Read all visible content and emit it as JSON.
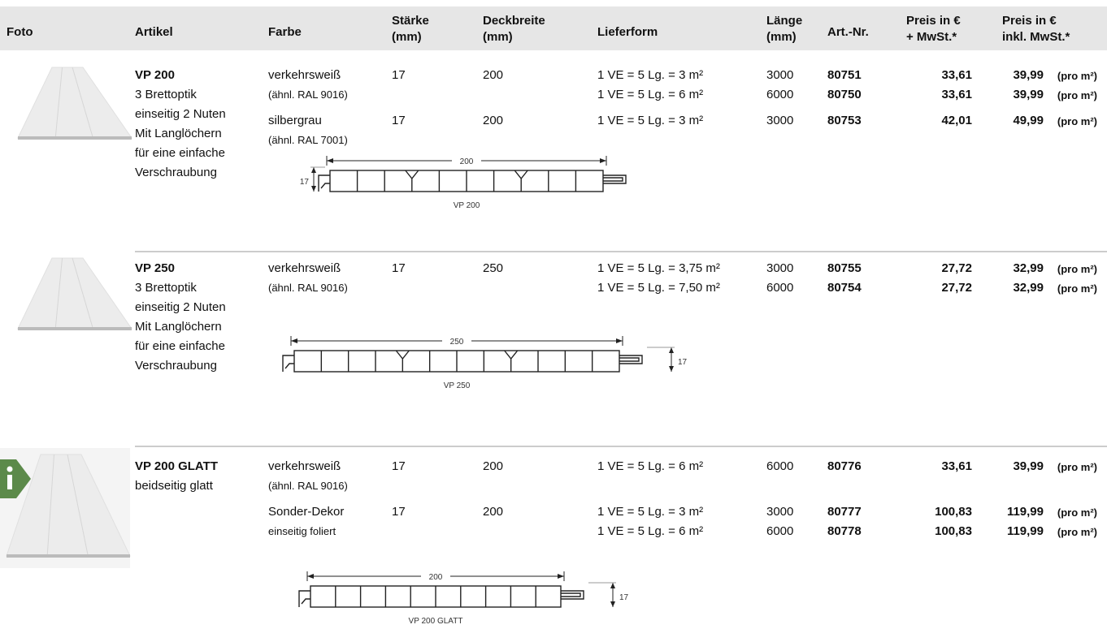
{
  "header": {
    "columns": [
      [
        "Foto"
      ],
      [
        "Artikel"
      ],
      [
        "Farbe"
      ],
      [
        "Stärke",
        "(mm)"
      ],
      [
        "Deckbreite",
        "(mm)"
      ],
      [
        "Lieferform"
      ],
      [
        "Länge",
        "(mm)"
      ],
      [
        "Art.-Nr."
      ],
      [
        "Preis in €",
        "+ MwSt.*"
      ],
      [
        "Preis in €",
        "inkl. MwSt.*"
      ]
    ]
  },
  "price_unit": "(pro m²)",
  "products": [
    {
      "name": "VP 200",
      "description": [
        "3 Brettoptik",
        "einseitig 2 Nuten",
        "Mit Langlöchern",
        "für eine einfache",
        "Verschraubung"
      ],
      "variants": [
        {
          "color": "verkehrsweiß",
          "color_note": "(ähnl. RAL 9016)",
          "thickness": "17",
          "width": "200",
          "lines": [
            {
              "delivery": "1 VE = 5 Lg. = 3 m²",
              "length": "3000",
              "article_no": "80751",
              "price_net": "33,61",
              "price_gross": "39,99"
            },
            {
              "delivery": "1 VE = 5 Lg. = 6 m²",
              "length": "6000",
              "article_no": "80750",
              "price_net": "33,61",
              "price_gross": "39,99"
            }
          ]
        },
        {
          "color": "silbergrau",
          "color_note": "(ähnl. RAL 7001)",
          "thickness": "17",
          "width": "200",
          "lines": [
            {
              "delivery": "1 VE = 5 Lg. = 3 m²",
              "length": "3000",
              "article_no": "80753",
              "price_net": "42,01",
              "price_gross": "49,99"
            }
          ]
        }
      ],
      "diagram": {
        "width": "200",
        "thickness": "17",
        "label": "VP 200"
      }
    },
    {
      "name": "VP 250",
      "description": [
        "3 Brettoptik",
        "einseitig 2 Nuten",
        "Mit Langlöchern",
        "für eine einfache",
        "Verschraubung"
      ],
      "variants": [
        {
          "color": "verkehrsweiß",
          "color_note": "(ähnl. RAL 9016)",
          "thickness": "17",
          "width": "250",
          "lines": [
            {
              "delivery": "1 VE = 5 Lg. = 3,75 m²",
              "length": "3000",
              "article_no": "80755",
              "price_net": "27,72",
              "price_gross": "32,99"
            },
            {
              "delivery": "1 VE = 5 Lg. = 7,50 m²",
              "length": "6000",
              "article_no": "80754",
              "price_net": "27,72",
              "price_gross": "32,99"
            }
          ]
        }
      ],
      "diagram": {
        "width": "250",
        "thickness": "17",
        "label": "VP 250"
      }
    },
    {
      "name": "VP 200 GLATT",
      "description": [
        "beidseitig glatt"
      ],
      "variants": [
        {
          "color": "verkehrsweiß",
          "color_note": "(ähnl. RAL 9016)",
          "thickness": "17",
          "width": "200",
          "lines": [
            {
              "delivery": "1 VE = 5 Lg. = 6 m²",
              "length": "6000",
              "article_no": "80776",
              "price_net": "33,61",
              "price_gross": "39,99"
            }
          ]
        },
        {
          "color": "Sonder-Dekor",
          "color_note": "einseitig foliert",
          "thickness": "17",
          "width": "200",
          "lines": [
            {
              "delivery": "1 VE = 5 Lg. = 3 m²",
              "length": "3000",
              "article_no": "80777",
              "price_net": "100,83",
              "price_gross": "119,99"
            },
            {
              "delivery": "1 VE = 5 Lg. = 6 m²",
              "length": "6000",
              "article_no": "80778",
              "price_net": "100,83",
              "price_gross": "119,99"
            }
          ]
        }
      ],
      "diagram": {
        "width": "200",
        "thickness": "17",
        "label": "VP 200 GLATT"
      }
    }
  ]
}
